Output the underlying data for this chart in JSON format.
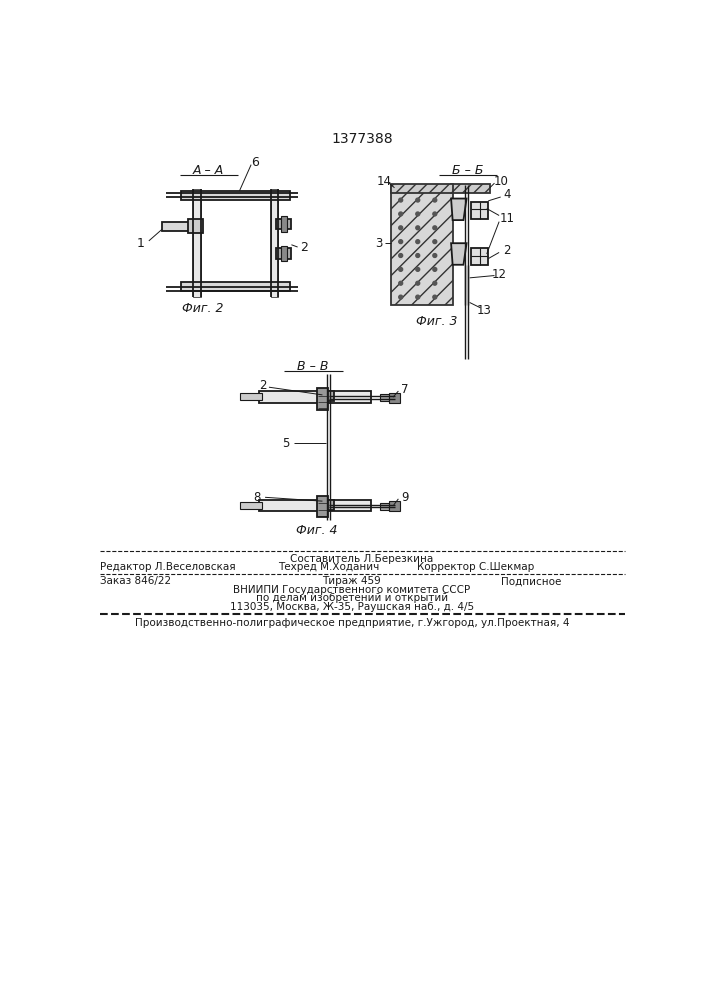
{
  "patent_number": "1377388",
  "background_color": "#ffffff",
  "line_color": "#1a1a1a",
  "fig_width": 7.07,
  "fig_height": 10.0,
  "footer": {
    "line1_center_top": "Составитель Л.Березкина",
    "line1_left": "Редактор Л.Веселовская",
    "line1_center": "Техред М.Ходанич",
    "line1_right": "Корректор С.Шекмар",
    "line2_left": "Заказ 846/22",
    "line2_center": "Тираж 459",
    "line2_right": "Подписное",
    "line3": "ВНИИПИ Государственного комитета СССР",
    "line4": "по делам изобретений и открытий",
    "line5": "113035, Москва, Ж-35, Раушская наб., д. 4/5",
    "line6": "Производственно-полиграфическое предприятие, г.Ужгород, ул.Проектная, 4"
  }
}
